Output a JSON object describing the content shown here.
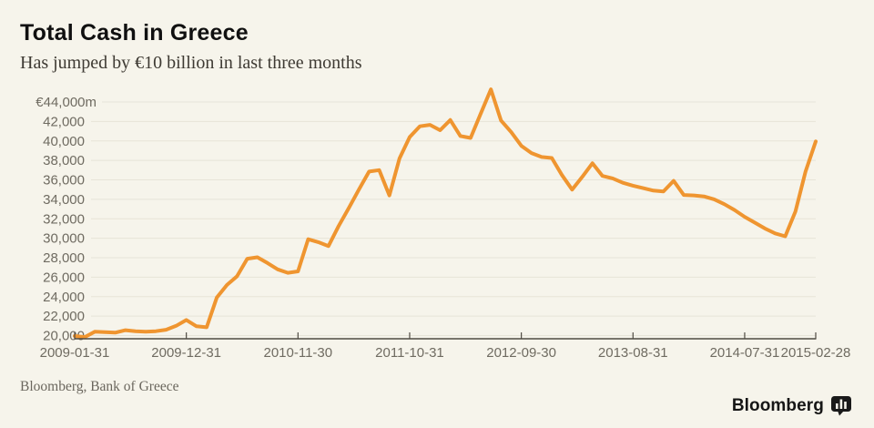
{
  "header": {
    "title": "Total Cash in Greece",
    "subtitle": "Has jumped by €10 billion in last three months"
  },
  "footer": {
    "source": "Bloomberg, Bank of Greece",
    "brand": "Bloomberg",
    "brand_icon": "bar-chart-bubble-icon"
  },
  "colors": {
    "background": "#f6f4eb",
    "line": "#EF9530",
    "grid": "#e7e4d8",
    "axis": "#4f4b43",
    "tick_text": "#6f6b61"
  },
  "chart_data": {
    "type": "line",
    "title": "Total Cash in Greece",
    "subtitle": "Has jumped by €10 billion in last three months",
    "unit": "€ millions",
    "ylim": [
      20000,
      44000
    ],
    "grid": "horizontal-only",
    "legend": "none",
    "y_ticks": [
      {
        "value": 44000,
        "label": "€44,000m"
      },
      {
        "value": 42000,
        "label": "42,000"
      },
      {
        "value": 40000,
        "label": "40,000"
      },
      {
        "value": 38000,
        "label": "38,000"
      },
      {
        "value": 36000,
        "label": "36,000"
      },
      {
        "value": 34000,
        "label": "34,000"
      },
      {
        "value": 32000,
        "label": "32,000"
      },
      {
        "value": 30000,
        "label": "30,000"
      },
      {
        "value": 28000,
        "label": "28,000"
      },
      {
        "value": 26000,
        "label": "26,000"
      },
      {
        "value": 24000,
        "label": "24,000"
      },
      {
        "value": 22000,
        "label": "22,000"
      },
      {
        "value": 20000,
        "label": "20,000"
      }
    ],
    "x_tick_labels": [
      "2009-01-31",
      "2009-12-31",
      "2010-11-30",
      "2011-10-31",
      "2012-09-30",
      "2013-08-31",
      "2014-07-31",
      "2015-02-28"
    ],
    "x": [
      "2009-01-31",
      "2009-02-28",
      "2009-03-31",
      "2009-04-30",
      "2009-05-31",
      "2009-06-30",
      "2009-07-31",
      "2009-08-31",
      "2009-09-30",
      "2009-10-31",
      "2009-11-30",
      "2009-12-31",
      "2010-01-31",
      "2010-02-28",
      "2010-03-31",
      "2010-04-30",
      "2010-05-31",
      "2010-06-30",
      "2010-07-31",
      "2010-08-31",
      "2010-09-30",
      "2010-10-31",
      "2010-11-30",
      "2010-12-31",
      "2011-01-31",
      "2011-02-28",
      "2011-03-31",
      "2011-04-30",
      "2011-05-31",
      "2011-06-30",
      "2011-07-31",
      "2011-08-31",
      "2011-09-30",
      "2011-10-31",
      "2011-11-30",
      "2011-12-31",
      "2012-01-31",
      "2012-02-29",
      "2012-03-31",
      "2012-04-30",
      "2012-05-31",
      "2012-06-30",
      "2012-07-31",
      "2012-08-31",
      "2012-09-30",
      "2012-10-31",
      "2012-11-30",
      "2012-12-31",
      "2013-01-31",
      "2013-02-28",
      "2013-03-31",
      "2013-04-30",
      "2013-05-31",
      "2013-06-30",
      "2013-07-31",
      "2013-08-31",
      "2013-09-30",
      "2013-10-31",
      "2013-11-30",
      "2013-12-31",
      "2014-01-31",
      "2014-02-28",
      "2014-03-31",
      "2014-04-30",
      "2014-05-31",
      "2014-06-30",
      "2014-07-31",
      "2014-08-31",
      "2014-09-30",
      "2014-10-31",
      "2014-11-30",
      "2014-12-31",
      "2015-01-31",
      "2015-02-28"
    ],
    "values": [
      19950,
      19850,
      20400,
      20350,
      20300,
      20550,
      20450,
      20400,
      20450,
      20600,
      21000,
      21600,
      20950,
      20850,
      23900,
      25200,
      26100,
      27900,
      28050,
      27450,
      26800,
      26450,
      26600,
      29900,
      29600,
      29200,
      31250,
      33100,
      35000,
      36850,
      37000,
      34400,
      38200,
      40400,
      41500,
      41650,
      41100,
      42150,
      40500,
      40300,
      42800,
      45300,
      42100,
      40900,
      39500,
      38750,
      38350,
      38250,
      36500,
      35000,
      36300,
      37700,
      36400,
      36150,
      35700,
      35400,
      35150,
      34900,
      34800,
      35900,
      34450,
      34400,
      34300,
      34000,
      33500,
      32900,
      32200,
      31600,
      31000,
      30500,
      30200,
      32750,
      36850,
      39950
    ]
  }
}
